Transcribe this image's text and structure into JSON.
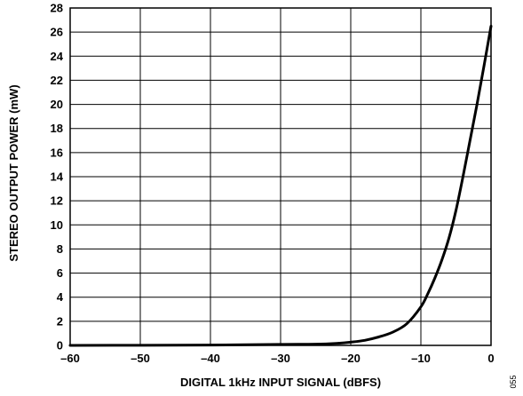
{
  "chart_data": {
    "type": "line",
    "title": "",
    "xlabel": "DIGITAL 1kHz INPUT SIGNAL (dBFS)",
    "ylabel": "STEREO OUTPUT POWER (mW)",
    "xlim": [
      -60,
      0
    ],
    "ylim": [
      0,
      28
    ],
    "x_ticks": [
      -60,
      -50,
      -40,
      -30,
      -20,
      -10,
      0
    ],
    "x_tick_labels": [
      "–60",
      "–50",
      "–40",
      "–30",
      "–20",
      "–10",
      "0"
    ],
    "y_ticks": [
      0,
      2,
      4,
      6,
      8,
      10,
      12,
      14,
      16,
      18,
      20,
      22,
      24,
      26,
      28
    ],
    "y_tick_labels": [
      "0",
      "2",
      "4",
      "6",
      "8",
      "10",
      "12",
      "14",
      "16",
      "18",
      "20",
      "22",
      "24",
      "26",
      "28"
    ],
    "grid": true,
    "series": [
      {
        "x": [
          -60,
          -50,
          -40,
          -30,
          -25,
          -22,
          -20,
          -18,
          -16,
          -14,
          -12,
          -10,
          -9,
          -8,
          -7,
          -6,
          -5,
          -4,
          -3,
          -2,
          -1,
          0
        ],
        "y": [
          0,
          0.01,
          0.03,
          0.08,
          0.1,
          0.17,
          0.27,
          0.42,
          0.7,
          1.1,
          1.8,
          3.2,
          4.3,
          5.6,
          7.1,
          8.9,
          11.2,
          14.0,
          17.0,
          20.0,
          23.2,
          26.5
        ],
        "color": "#000000"
      }
    ]
  },
  "figure_id": "055"
}
